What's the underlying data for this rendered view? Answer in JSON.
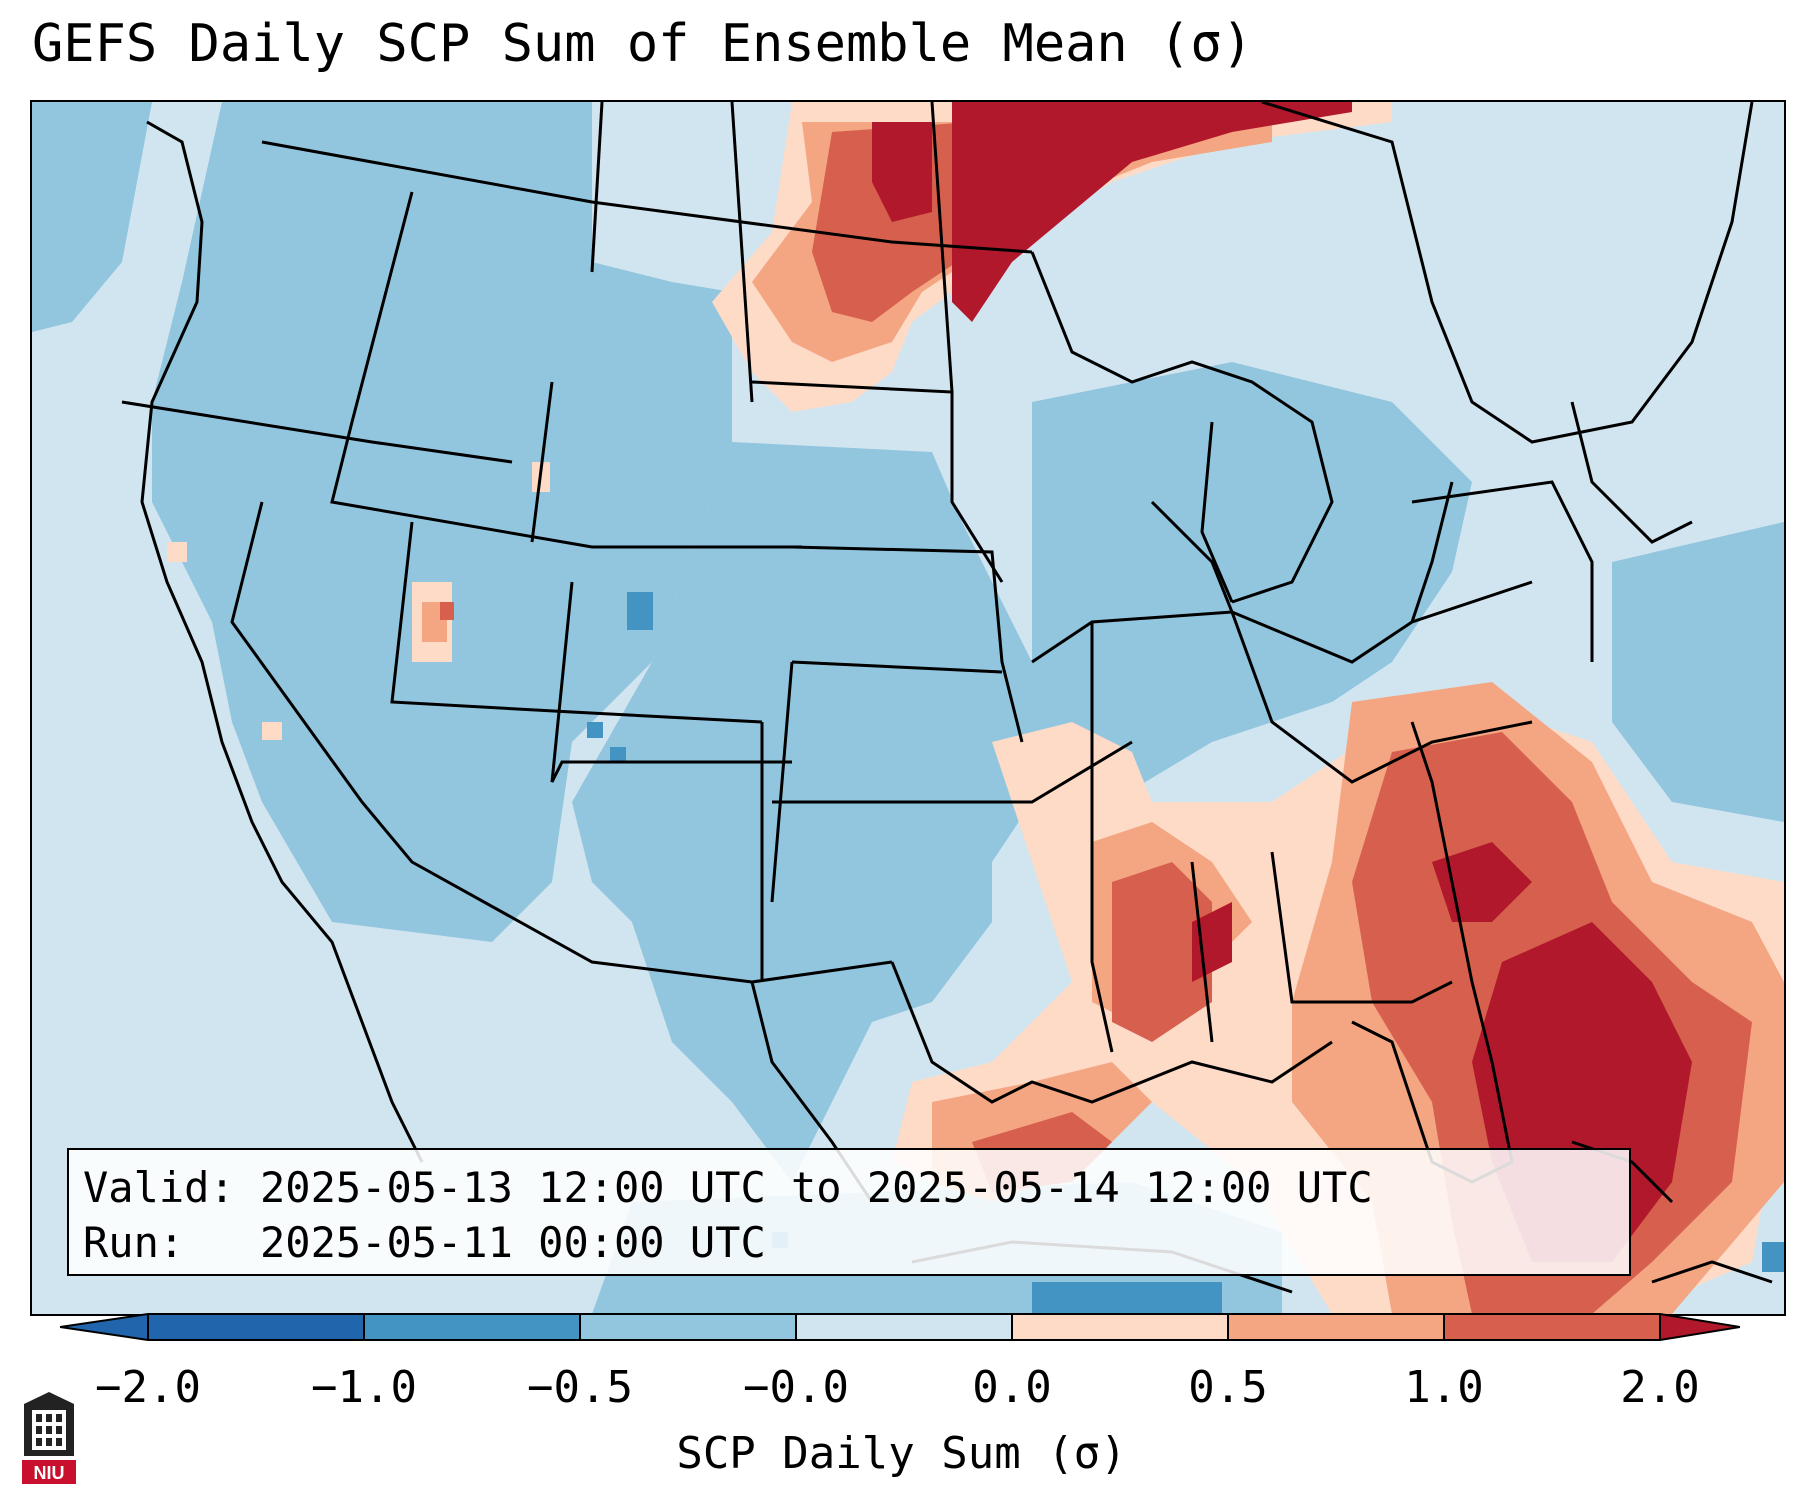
{
  "title": "GEFS Daily SCP Sum of Ensemble Mean (σ)",
  "info": {
    "valid_label": "Valid:",
    "valid_value": "2025-05-13 12:00 UTC to 2025-05-14 12:00 UTC",
    "run_label": "Run:",
    "run_value": "2025-05-11 00:00 UTC"
  },
  "colorbar": {
    "label": "SCP Daily Sum (σ)",
    "ticks": [
      "−2.0",
      "−1.0",
      "−0.5",
      "−0.0",
      "0.0",
      "0.5",
      "1.0",
      "2.0"
    ],
    "colors": [
      "#2166ac",
      "#4393c3",
      "#92c5de",
      "#d1e5f0",
      "#ffffff",
      "#fddbc7",
      "#f4a582",
      "#d6604d",
      "#b2182b"
    ]
  },
  "logo": {
    "icon": "niu-logo-icon",
    "text": "NIU"
  }
}
